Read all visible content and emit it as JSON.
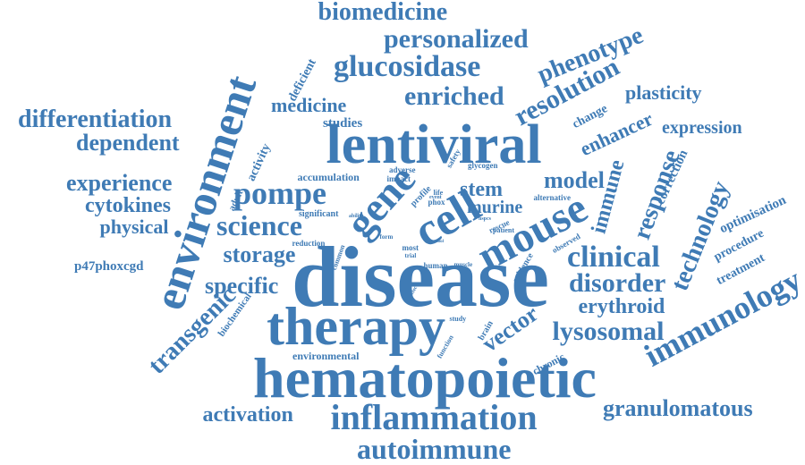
{
  "color": "#3f7bb5",
  "words": [
    {
      "text": "disease"
    },
    {
      "text": "hematopoietic"
    },
    {
      "text": "lentiviral"
    },
    {
      "text": "therapy"
    },
    {
      "text": "environment"
    },
    {
      "text": "cell"
    },
    {
      "text": "mouse"
    },
    {
      "text": "gene"
    },
    {
      "text": "inflammation"
    },
    {
      "text": "immunology"
    },
    {
      "text": "autoimmune"
    },
    {
      "text": "glucosidase"
    },
    {
      "text": "personalized"
    },
    {
      "text": "biomedicine"
    },
    {
      "text": "enriched"
    },
    {
      "text": "resolution"
    },
    {
      "text": "phenotype"
    },
    {
      "text": "differentiation"
    },
    {
      "text": "dependent"
    },
    {
      "text": "experience"
    },
    {
      "text": "cytokines"
    },
    {
      "text": "physical"
    },
    {
      "text": "science"
    },
    {
      "text": "pompe"
    },
    {
      "text": "clinical"
    },
    {
      "text": "disorder"
    },
    {
      "text": "lysosomal"
    },
    {
      "text": "granulomatous"
    },
    {
      "text": "activation"
    },
    {
      "text": "transgenic"
    },
    {
      "text": "technology"
    },
    {
      "text": "response"
    },
    {
      "text": "model"
    },
    {
      "text": "immune"
    },
    {
      "text": "stem"
    },
    {
      "text": "storage"
    },
    {
      "text": "specific"
    },
    {
      "text": "vector"
    },
    {
      "text": "erythroid"
    },
    {
      "text": "enhancer"
    },
    {
      "text": "plasticity"
    },
    {
      "text": "expression"
    },
    {
      "text": "medicine"
    },
    {
      "text": "murine"
    },
    {
      "text": "p47phoxcgd"
    },
    {
      "text": "optimisation"
    },
    {
      "text": "procedure"
    },
    {
      "text": "treatment"
    },
    {
      "text": "correction"
    },
    {
      "text": "studies"
    },
    {
      "text": "deficient"
    },
    {
      "text": "activity"
    },
    {
      "text": "accumulation"
    },
    {
      "text": "environmental"
    },
    {
      "text": "change"
    },
    {
      "text": "chronic"
    },
    {
      "text": "biochemical"
    },
    {
      "text": "adult"
    },
    {
      "text": "significant"
    },
    {
      "text": "reduction"
    },
    {
      "text": "common"
    },
    {
      "text": "brain"
    },
    {
      "text": "evidence"
    },
    {
      "text": "observed"
    },
    {
      "text": "alternative"
    },
    {
      "text": "human"
    },
    {
      "text": "muscle"
    },
    {
      "text": "profile"
    },
    {
      "text": "glycogen"
    },
    {
      "text": "safety"
    },
    {
      "text": "adverse"
    },
    {
      "text": "impact"
    },
    {
      "text": "phox"
    },
    {
      "text": "rescue"
    },
    {
      "text": "patient"
    },
    {
      "text": "most"
    },
    {
      "text": "trial"
    },
    {
      "text": "form"
    },
    {
      "text": "study"
    },
    {
      "text": "life"
    },
    {
      "text": "event"
    },
    {
      "text": "ability"
    },
    {
      "text": "hspcs"
    },
    {
      "text": "function"
    },
    {
      "text": "effect"
    },
    {
      "text": "tool"
    }
  ]
}
